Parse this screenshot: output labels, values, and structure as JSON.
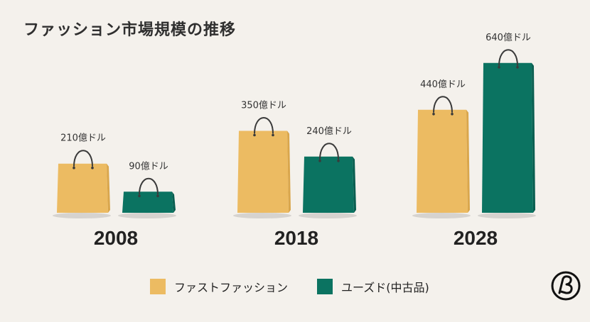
{
  "title": "ファッション市場規模の推移",
  "colors": {
    "fast": "#ecbb62",
    "used": "#0b7361",
    "background": "#f4f1ec"
  },
  "logo": {
    "icon": "beta-circle-logo"
  },
  "chart_data": {
    "type": "bar",
    "title": "ファッション市場規模の推移",
    "unit": "億ドル",
    "categories": [
      "2008",
      "2018",
      "2028"
    ],
    "series": [
      {
        "name": "ファストファッション",
        "values": [
          210,
          350,
          440
        ],
        "labels": [
          "210億ドル",
          "350億ドル",
          "440億ドル"
        ]
      },
      {
        "name": "ユーズド(中古品)",
        "values": [
          90,
          240,
          640
        ],
        "labels": [
          "90億ドル",
          "240億ドル",
          "640億ドル"
        ]
      }
    ],
    "legend_position": "bottom",
    "grid": false
  }
}
